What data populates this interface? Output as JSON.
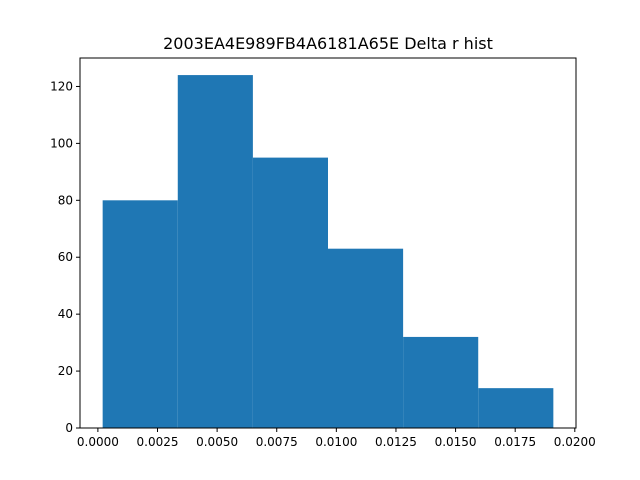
{
  "chart_data": {
    "type": "bar",
    "title": "2003EA4E989FB4A6181A65E Delta r hist",
    "xlabel": "",
    "ylabel": "",
    "bins": [
      {
        "start": 0.0002,
        "end": 0.00335,
        "value": 80
      },
      {
        "start": 0.00335,
        "end": 0.0065,
        "value": 124
      },
      {
        "start": 0.0065,
        "end": 0.00965,
        "value": 95
      },
      {
        "start": 0.00965,
        "end": 0.0128,
        "value": 63
      },
      {
        "start": 0.0128,
        "end": 0.01595,
        "value": 32
      },
      {
        "start": 0.01595,
        "end": 0.0191,
        "value": 14
      }
    ],
    "xlim": [
      -0.00075,
      0.02005
    ],
    "ylim": [
      0,
      130
    ],
    "x_ticks": [
      "0.0000",
      "0.0025",
      "0.0050",
      "0.0075",
      "0.0100",
      "0.0125",
      "0.0150",
      "0.0175",
      "0.0200"
    ],
    "y_ticks": [
      "0",
      "20",
      "40",
      "60",
      "80",
      "100",
      "120"
    ],
    "bar_color": "#1f77b4",
    "grid": false
  }
}
